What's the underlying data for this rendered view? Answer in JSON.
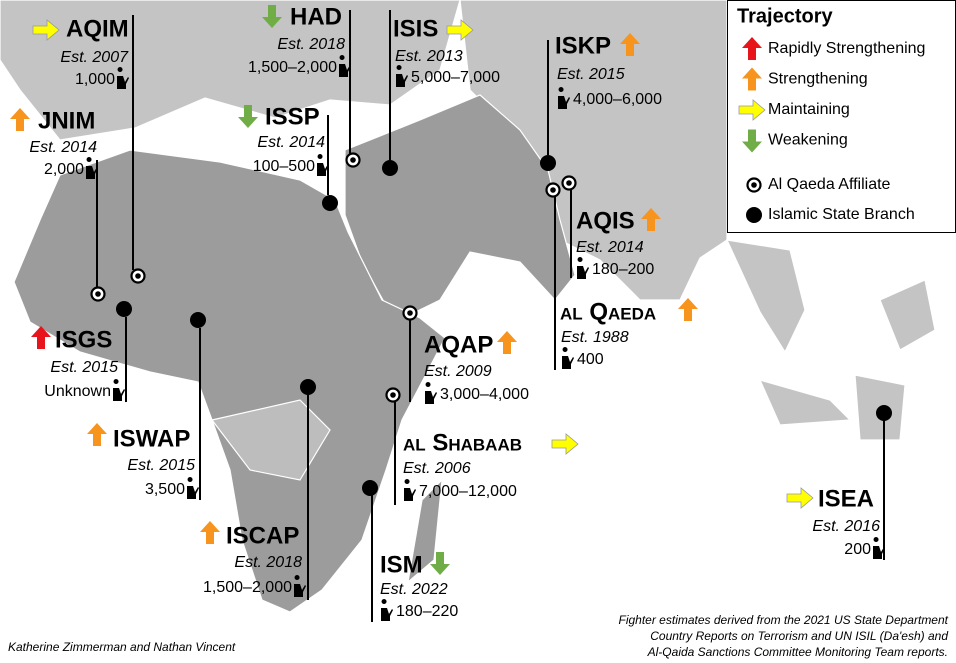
{
  "legend": {
    "title": "Trajectory",
    "trajectories": [
      {
        "label": "Rapidly Strengthening",
        "color": "#e8141c",
        "arrow": "up"
      },
      {
        "label": "Strengthening",
        "color": "#f7941d",
        "arrow": "up"
      },
      {
        "label": "Maintaining",
        "color": "#ffff00",
        "arrow": "right"
      },
      {
        "label": "Weakening",
        "color": "#70ad47",
        "arrow": "down"
      }
    ],
    "branches": [
      "Al Qaeda Affiliate",
      "Islamic State Branch"
    ]
  },
  "groups": [
    {
      "name": "AQIM",
      "est": "Est. 2007",
      "fighters": "1,000",
      "trajectory": "Maintaining",
      "branch": "Al Qaeda Affiliate"
    },
    {
      "name": "JNIM",
      "est": "Est. 2014",
      "fighters": "2,000",
      "trajectory": "Strengthening",
      "branch": "Al Qaeda Affiliate"
    },
    {
      "name": "HAD",
      "est": "Est. 2018",
      "fighters": "1,500–2,000",
      "trajectory": "Weakening",
      "branch": "Al Qaeda Affiliate"
    },
    {
      "name": "ISIS",
      "est": "Est. 2013",
      "fighters": "5,000–7,000",
      "trajectory": "Maintaining",
      "branch": "Islamic State Branch"
    },
    {
      "name": "ISSP",
      "est": "Est. 2014",
      "fighters": "100–500",
      "trajectory": "Weakening",
      "branch": "Islamic State Branch"
    },
    {
      "name": "ISKP",
      "est": "Est. 2015",
      "fighters": "4,000–6,000",
      "trajectory": "Strengthening",
      "branch": "Islamic State Branch"
    },
    {
      "name": "AQIS",
      "est": "Est. 2014",
      "fighters": "180–200",
      "trajectory": "Strengthening",
      "branch": "Al Qaeda Affiliate"
    },
    {
      "name": "al Qaeda",
      "est": "Est. 1988",
      "fighters": "400",
      "trajectory": "Strengthening",
      "branch": "Al Qaeda Affiliate"
    },
    {
      "name": "AQAP",
      "est": "Est. 2009",
      "fighters": "3,000–4,000",
      "trajectory": "Strengthening",
      "branch": "Al Qaeda Affiliate"
    },
    {
      "name": "al Shabaab",
      "est": "Est. 2006",
      "fighters": "7,000–12,000",
      "trajectory": "Maintaining",
      "branch": "Al Qaeda Affiliate"
    },
    {
      "name": "ISM",
      "est": "Est. 2022",
      "fighters": "180–220",
      "trajectory": "Weakening",
      "branch": "Islamic State Branch"
    },
    {
      "name": "ISCAP",
      "est": "Est. 2018",
      "fighters": "1,500–2,000",
      "trajectory": "Strengthening",
      "branch": "Islamic State Branch"
    },
    {
      "name": "ISWAP",
      "est": "Est. 2015",
      "fighters": "3,500",
      "trajectory": "Strengthening",
      "branch": "Islamic State Branch"
    },
    {
      "name": "ISGS",
      "est": "Est. 2015",
      "fighters": "Unknown",
      "trajectory": "Rapidly Strengthening",
      "branch": "Islamic State Branch"
    },
    {
      "name": "ISEA",
      "est": "Est. 2016",
      "fighters": "200",
      "trajectory": "Maintaining",
      "branch": "Islamic State Branch"
    }
  ],
  "credit": "Katherine Zimmerman and Nathan Vincent",
  "source": [
    "Fighter estimates derived  from the 2021 US State Department",
    "Country Reports on Terrorism and UN ISIL (Da'esh)  and",
    "Al-Qaida Sanctions Committee Monitoring Team reports."
  ]
}
